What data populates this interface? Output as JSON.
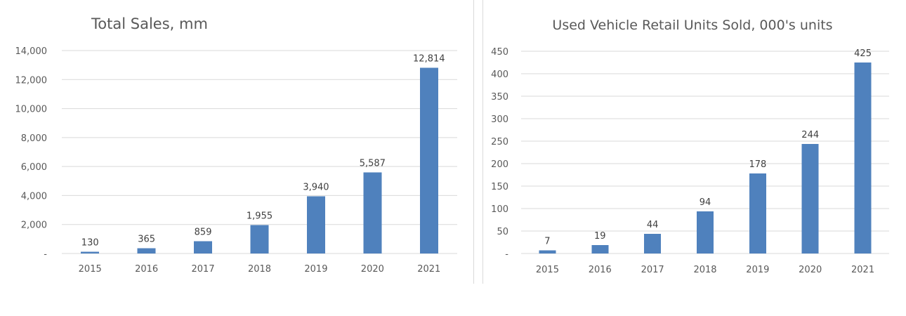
{
  "chart_data": [
    {
      "type": "bar",
      "title": "Total Sales, mm",
      "categories": [
        "2015",
        "2016",
        "2017",
        "2018",
        "2019",
        "2020",
        "2021"
      ],
      "values": [
        130,
        365,
        859,
        1955,
        3940,
        5587,
        12814
      ],
      "data_labels": [
        "130",
        "365",
        "859",
        "1,955",
        "3,940",
        "5,587",
        "12,814"
      ],
      "y_ticks": [
        0,
        2000,
        4000,
        6000,
        8000,
        10000,
        12000,
        14000
      ],
      "y_tick_labels": [
        "-",
        "2,000",
        "4,000",
        "6,000",
        "8,000",
        "10,000",
        "12,000",
        "14,000"
      ],
      "ylim": [
        0,
        14000
      ],
      "grid": true,
      "legend": "none",
      "bar_color": "#4f81bd"
    },
    {
      "type": "bar",
      "title": "Used Vehicle Retail Units Sold, 000's units",
      "categories": [
        "2015",
        "2016",
        "2017",
        "2018",
        "2019",
        "2020",
        "2021"
      ],
      "values": [
        7,
        19,
        44,
        94,
        178,
        244,
        425
      ],
      "data_labels": [
        "7",
        "19",
        "44",
        "94",
        "178",
        "244",
        "425"
      ],
      "y_ticks": [
        0,
        50,
        100,
        150,
        200,
        250,
        300,
        350,
        400,
        450
      ],
      "y_tick_labels": [
        "-",
        "50",
        "100",
        "150",
        "200",
        "250",
        "300",
        "350",
        "400",
        "450"
      ],
      "ylim": [
        0,
        450
      ],
      "grid": true,
      "legend": "none",
      "bar_color": "#4f81bd"
    }
  ]
}
